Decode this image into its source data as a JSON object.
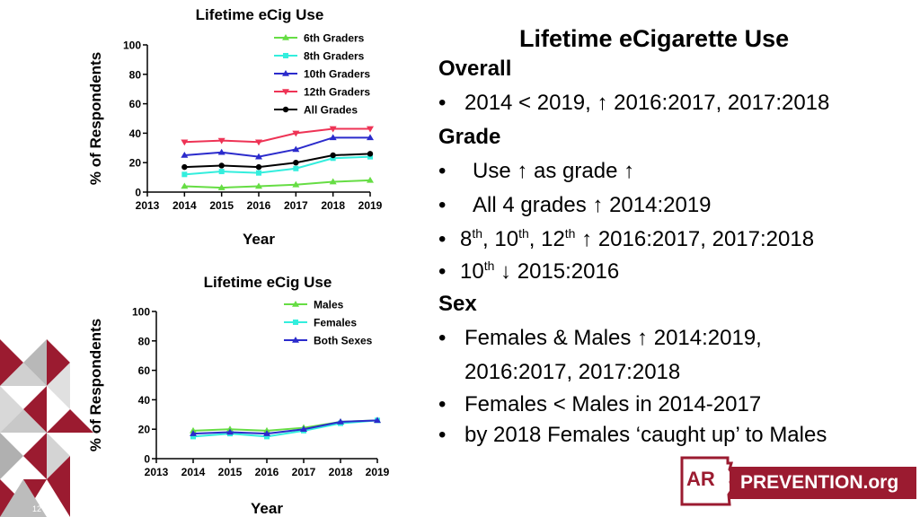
{
  "slide": {
    "title": "Lifetime eCigarette Use",
    "page_number": "12"
  },
  "colors": {
    "accent": "#9b1b30",
    "deco_gray": "#d0d0d0",
    "6th": "#66dd44",
    "8th": "#33eedd",
    "10th": "#2b2bcc",
    "12th": "#ee3355",
    "all": "#000000",
    "males": "#66dd44",
    "females": "#33eedd",
    "both": "#2b2bcc"
  },
  "bullets": {
    "overall_heading": "Overall",
    "overall_1": "2014 < 2019, ↑ 2016:2017, 2017:2018",
    "grade_heading": "Grade",
    "grade_1": "Use ↑ as grade ↑",
    "grade_2": "All 4 grades ↑ 2014:2019",
    "grade_3_a": "8",
    "grade_3_sup_a": "th",
    "grade_3_b": ", 10",
    "grade_3_sup_b": "th",
    "grade_3_c": ", 12",
    "grade_3_sup_c": "th",
    "grade_3_d": " ↑ 2016:2017, 2017:2018",
    "grade_4_a": "10",
    "grade_4_sup": "th",
    "grade_4_b": " ↓ 2015:2016",
    "sex_heading": "Sex",
    "sex_1_line1": "Females & Males ↑ 2014:2019,",
    "sex_1_line2": "2016:2017, 2017:2018",
    "sex_2": "Females < Males in 2014-2017",
    "sex_3": "by 2018 Females ‘caught up’ to Males"
  },
  "logo": {
    "ar": "AR",
    "text": "PREVENTION.org"
  },
  "chart_data": [
    {
      "type": "line",
      "title": "Lifetime eCig Use",
      "xlabel": "Year",
      "ylabel": "% of Respondents",
      "x": [
        2014,
        2015,
        2016,
        2017,
        2018,
        2019
      ],
      "xlim": [
        2013,
        2019
      ],
      "xticks": [
        "2013",
        "2014",
        "2015",
        "2016",
        "2017",
        "2018",
        "2019"
      ],
      "ylim": [
        0,
        100
      ],
      "yticks": [
        "0",
        "20",
        "40",
        "60",
        "80",
        "100"
      ],
      "grid": false,
      "legend": "top-right",
      "series": [
        {
          "name": "6th Graders",
          "values": [
            4,
            3,
            4,
            5,
            7,
            8
          ],
          "marker": "triangle-up",
          "color_key": "6th"
        },
        {
          "name": "8th Graders",
          "values": [
            12,
            14,
            13,
            16,
            23,
            24
          ],
          "marker": "square",
          "color_key": "8th"
        },
        {
          "name": "10th Graders",
          "values": [
            25,
            27,
            24,
            29,
            37,
            37
          ],
          "marker": "triangle-up",
          "color_key": "10th"
        },
        {
          "name": "12th Graders",
          "values": [
            34,
            35,
            34,
            40,
            43,
            43
          ],
          "marker": "triangle-down",
          "color_key": "12th"
        },
        {
          "name": "All Grades",
          "values": [
            17,
            18,
            17,
            20,
            25,
            26
          ],
          "marker": "circle",
          "color_key": "all"
        }
      ]
    },
    {
      "type": "line",
      "title": "Lifetime eCig Use",
      "xlabel": "Year",
      "ylabel": "% of Respondents",
      "x": [
        2014,
        2015,
        2016,
        2017,
        2018,
        2019
      ],
      "xlim": [
        2013,
        2019
      ],
      "xticks": [
        "2013",
        "2014",
        "2015",
        "2016",
        "2017",
        "2018",
        "2019"
      ],
      "ylim": [
        0,
        100
      ],
      "yticks": [
        "0",
        "20",
        "40",
        "60",
        "80",
        "100"
      ],
      "grid": false,
      "legend": "top-right",
      "series": [
        {
          "name": "Males",
          "values": [
            19,
            20,
            19,
            21,
            25,
            26
          ],
          "marker": "triangle-up",
          "color_key": "males"
        },
        {
          "name": "Females",
          "values": [
            15,
            17,
            15,
            19,
            24,
            26
          ],
          "marker": "square",
          "color_key": "females"
        },
        {
          "name": "Both Sexes",
          "values": [
            17,
            18,
            17,
            20,
            25,
            26
          ],
          "marker": "triangle-up",
          "color_key": "both"
        }
      ]
    }
  ]
}
